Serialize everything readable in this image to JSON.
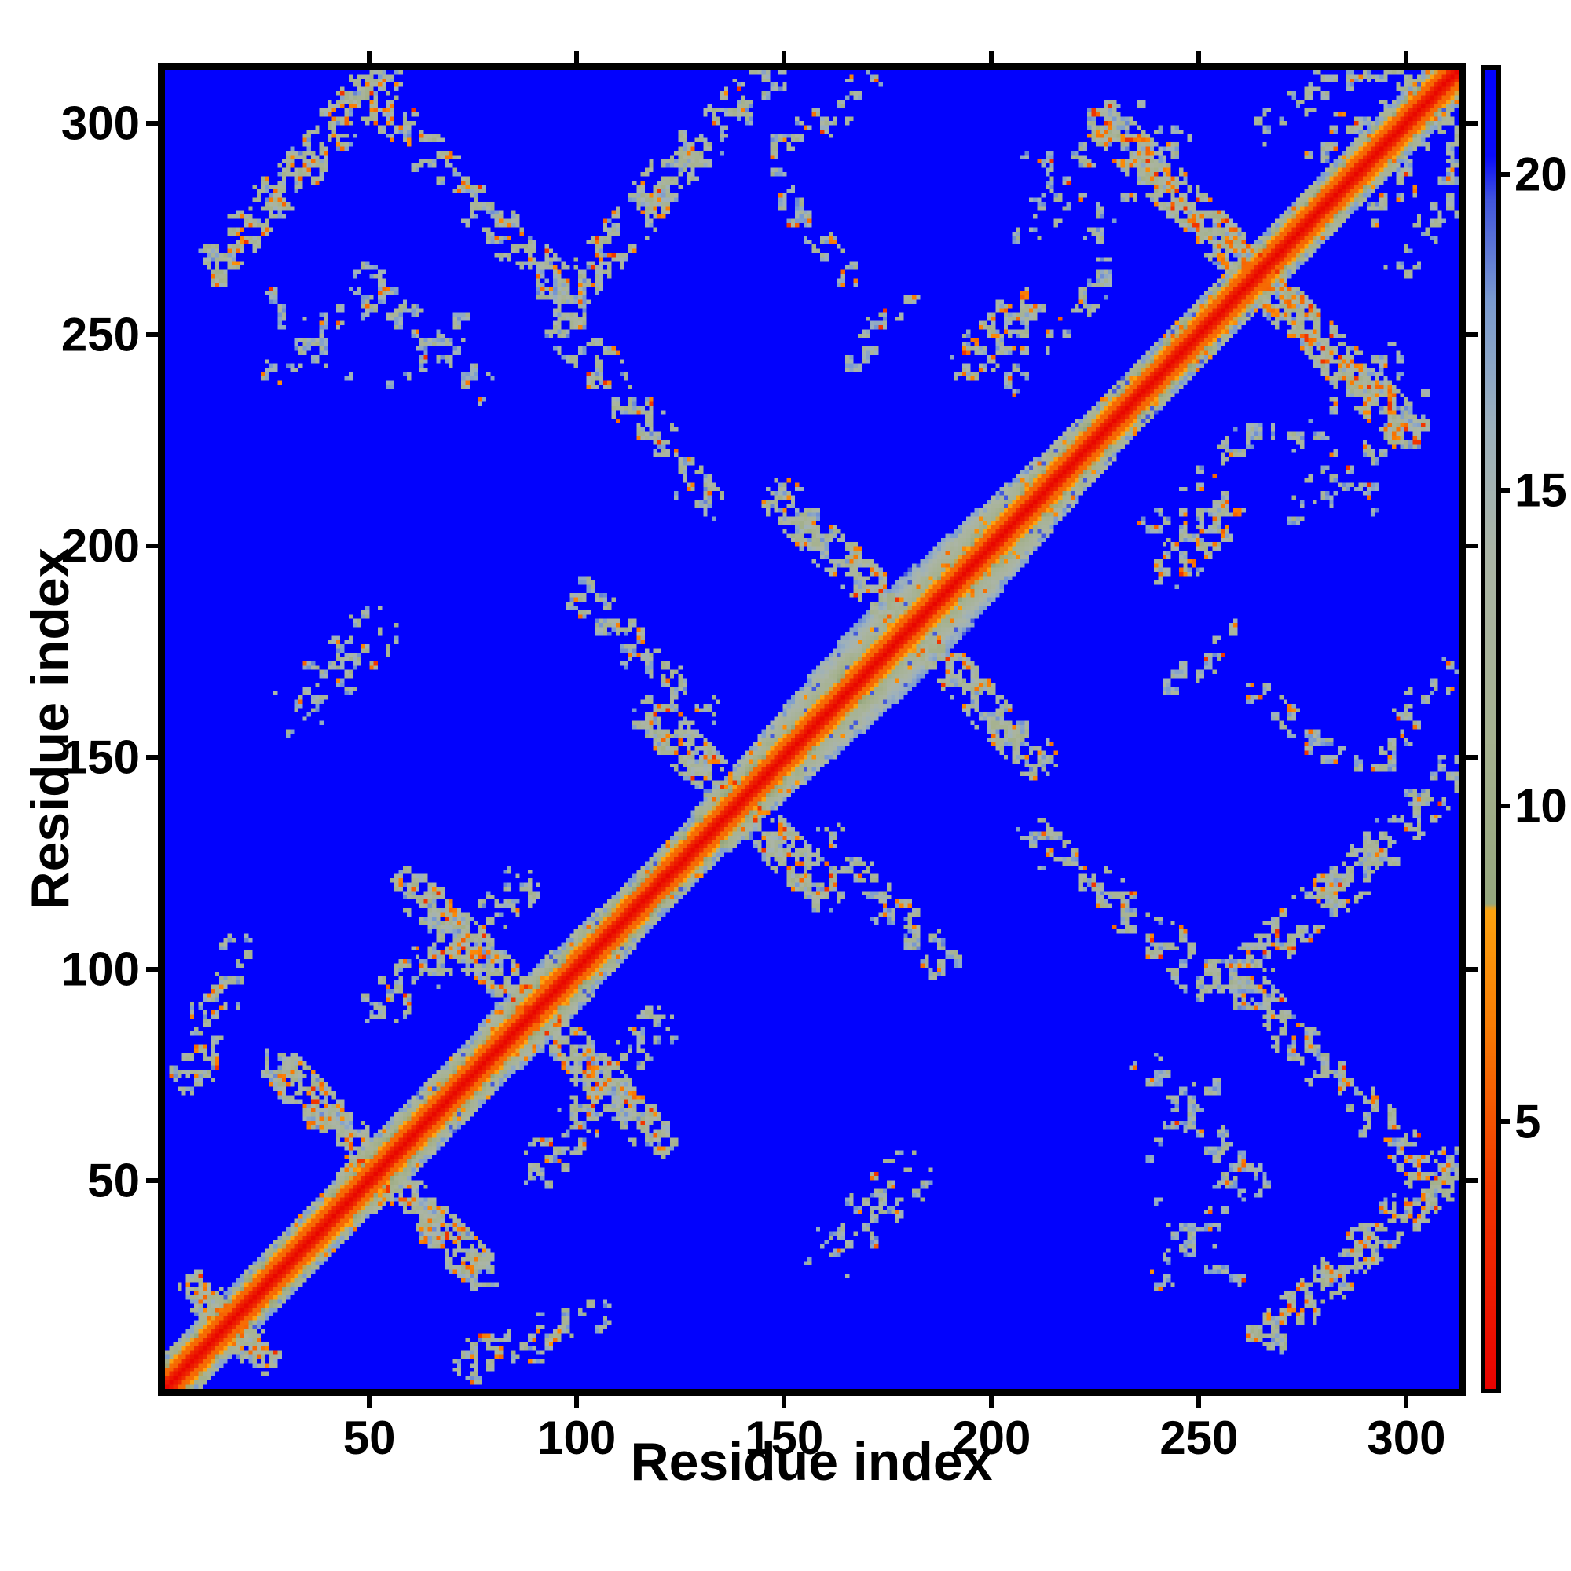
{
  "figure": {
    "background": "#ffffff",
    "frame_color": "#000000",
    "text_color": "#000000"
  },
  "axes": {
    "xlabel": "Residue index",
    "ylabel": "Residue index",
    "x_ticks": [
      50,
      100,
      150,
      200,
      250,
      300
    ],
    "y_ticks": [
      50,
      100,
      150,
      200,
      250,
      300
    ],
    "axis_min": 0.75,
    "axis_max": 312.6,
    "ticks_on_all_sides": true
  },
  "colorbar": {
    "ticks": [
      5,
      10,
      15,
      20
    ],
    "vmin": 0.77,
    "vmax": 21.66,
    "orientation": "vertical",
    "position": "right"
  },
  "chart_data": {
    "type": "heatmap",
    "title": "",
    "xlabel": "Residue index",
    "ylabel": "Residue index",
    "n_residues": 310,
    "symmetric": true,
    "value_meaning": "inter-residue distance, red=close, blue=far",
    "background_value": 25,
    "seed": 7,
    "colormap_stops": [
      [
        0.77,
        "#e80200"
      ],
      [
        4.0,
        "#f23800"
      ],
      [
        6.5,
        "#f87c04"
      ],
      [
        8.35,
        "#fda30f"
      ],
      [
        8.45,
        "#96a77e"
      ],
      [
        11.0,
        "#a6b290"
      ],
      [
        14.0,
        "#abb5a6"
      ],
      [
        16.0,
        "#9db1bd"
      ],
      [
        18.0,
        "#7b9bd0"
      ],
      [
        19.6,
        "#4256dc"
      ],
      [
        20.3,
        "#0a0cfb"
      ],
      [
        21.66,
        "#0202fd"
      ]
    ],
    "diagonal_band": {
      "core_values": [
        0.9,
        1.9,
        3.1
      ],
      "mid_values": [
        4.5,
        5.7,
        7.1
      ],
      "parity_amplitude": 1.1,
      "base_halfwidth": 8,
      "outer_start": 9.6,
      "outer_slope": 0.85,
      "outer_noise": 2.2,
      "hole_probability": 0.035,
      "width_bumps": [
        {
          "center": 178,
          "sigma": 24,
          "amp": 6.5
        },
        {
          "center": 90,
          "sigma": 13,
          "amp": 2.5
        },
        {
          "center": 55,
          "sigma": 10,
          "amp": 1.5
        }
      ]
    },
    "contact_clusters": [
      {
        "x1": 13,
        "y1": 265,
        "x2": 52,
        "y2": 309,
        "w": 5,
        "density": 0.7,
        "orange_p": 0.1,
        "steel_p": 0.2
      },
      {
        "x1": 46,
        "y1": 308,
        "x2": 92,
        "y2": 262,
        "w": 5,
        "density": 0.62,
        "orange_p": 0.1,
        "steel_p": 0.25
      },
      {
        "x1": 98,
        "y1": 256,
        "x2": 126,
        "y2": 292,
        "w": 5,
        "density": 0.58,
        "orange_p": 0.09,
        "steel_p": 0.3
      },
      {
        "x1": 97,
        "y1": 250,
        "x2": 130,
        "y2": 210,
        "w": 5,
        "density": 0.5,
        "orange_p": 0.07,
        "steel_p": 0.35
      },
      {
        "x1": 147,
        "y1": 283,
        "x2": 163,
        "y2": 262,
        "w": 4,
        "density": 0.32,
        "orange_p": 0.05,
        "steel_p": 0.5
      },
      {
        "x1": 163,
        "y1": 240,
        "x2": 180,
        "y2": 258,
        "w": 4,
        "density": 0.3,
        "orange_p": 0.04,
        "steel_p": 0.5
      },
      {
        "x1": 193,
        "y1": 242,
        "x2": 207,
        "y2": 255,
        "w": 5,
        "density": 0.6,
        "orange_p": 0.18,
        "steel_p": 0.25
      },
      {
        "x1": 227,
        "y1": 297,
        "x2": 298,
        "y2": 226,
        "w": 5,
        "density": 0.66,
        "orange_p": 0.14,
        "steel_p": 0.25
      },
      {
        "x1": 210,
        "y1": 288,
        "x2": 232,
        "y2": 302,
        "w": 4,
        "density": 0.3,
        "orange_p": 0.05,
        "steel_p": 0.5
      },
      {
        "x1": 262,
        "y1": 296,
        "x2": 289,
        "y2": 313,
        "w": 4,
        "density": 0.38,
        "orange_p": 0.07,
        "steel_p": 0.35
      },
      {
        "x1": 117,
        "y1": 281,
        "x2": 145,
        "y2": 309,
        "w": 5,
        "density": 0.42,
        "orange_p": 0.08,
        "steel_p": 0.35
      },
      {
        "x1": 148,
        "y1": 291,
        "x2": 171,
        "y2": 309,
        "w": 4,
        "density": 0.42,
        "orange_p": 0.08,
        "steel_p": 0.35
      },
      {
        "x1": 60,
        "y1": 118,
        "x2": 118,
        "y2": 60,
        "w": 5,
        "density": 0.55,
        "orange_p": 0.09,
        "steel_p": 0.3
      },
      {
        "x1": 28,
        "y1": 76,
        "x2": 76,
        "y2": 28,
        "w": 5,
        "density": 0.6,
        "orange_p": 0.11,
        "steel_p": 0.28
      },
      {
        "x1": 118,
        "y1": 158,
        "x2": 158,
        "y2": 118,
        "w": 5,
        "density": 0.52,
        "orange_p": 0.11,
        "steel_p": 0.3
      },
      {
        "x1": 32,
        "y1": 160,
        "x2": 50,
        "y2": 178,
        "w": 6,
        "density": 0.45,
        "orange_p": 0.05,
        "steel_p": 0.4
      },
      {
        "x1": 26,
        "y1": 238,
        "x2": 52,
        "y2": 260,
        "w": 4,
        "density": 0.28,
        "orange_p": 0.03,
        "steel_p": 0.6
      },
      {
        "x1": 48,
        "y1": 262,
        "x2": 76,
        "y2": 236,
        "w": 4,
        "density": 0.28,
        "orange_p": 0.03,
        "steel_p": 0.6
      },
      {
        "x1": 26,
        "y1": 256,
        "x2": 44,
        "y2": 238,
        "w": 3,
        "density": 0.22,
        "orange_p": 0.02,
        "steel_p": 0.65
      },
      {
        "x1": 52,
        "y1": 234,
        "x2": 74,
        "y2": 252,
        "w": 3,
        "density": 0.22,
        "orange_p": 0.02,
        "steel_p": 0.65
      },
      {
        "x1": 102,
        "y1": 186,
        "x2": 128,
        "y2": 160,
        "w": 5,
        "density": 0.48,
        "orange_p": 0.09,
        "steel_p": 0.3
      },
      {
        "x1": 148,
        "y1": 210,
        "x2": 208,
        "y2": 150,
        "w": 5,
        "density": 0.5,
        "orange_p": 0.09,
        "steel_p": 0.3
      },
      {
        "x1": 52,
        "y1": 90,
        "x2": 85,
        "y2": 118,
        "w": 5,
        "density": 0.48,
        "orange_p": 0.07,
        "steel_p": 0.3
      },
      {
        "x1": 7,
        "y1": 75,
        "x2": 17,
        "y2": 103,
        "w": 5,
        "density": 0.52,
        "orange_p": 0.09,
        "steel_p": 0.3
      },
      {
        "x1": 8,
        "y1": 24,
        "x2": 24,
        "y2": 8,
        "w": 4,
        "density": 0.68,
        "orange_p": 0.14,
        "steel_p": 0.2
      },
      {
        "x1": 203,
        "y1": 238,
        "x2": 225,
        "y2": 262,
        "w": 4,
        "density": 0.32,
        "orange_p": 0.05,
        "steel_p": 0.5
      },
      {
        "x1": 206,
        "y1": 272,
        "x2": 220,
        "y2": 286,
        "w": 4,
        "density": 0.32,
        "orange_p": 0.04,
        "steel_p": 0.5
      },
      {
        "x1": 224,
        "y1": 274,
        "x2": 242,
        "y2": 294,
        "w": 4,
        "density": 0.3,
        "orange_p": 0.04,
        "steel_p": 0.5
      },
      {
        "x1": 277,
        "y1": 292,
        "x2": 296,
        "y2": 308,
        "w": 4,
        "density": 0.38,
        "orange_p": 0.06,
        "steel_p": 0.35
      }
    ]
  }
}
